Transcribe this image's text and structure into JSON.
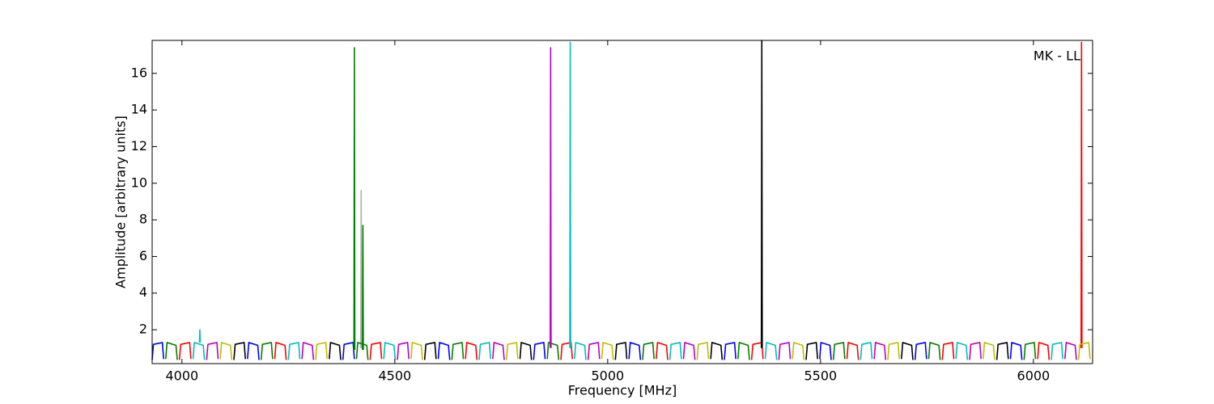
{
  "chart_data": {
    "type": "line",
    "xlabel": "Frequency [MHz]",
    "ylabel": "Amplitude [arbitrary units]",
    "annotation": "MK - LL",
    "xlim": [
      3930,
      6139
    ],
    "ylim": [
      0.15,
      17.8
    ],
    "xticks": [
      4000,
      4500,
      5000,
      5500,
      6000
    ],
    "yticks": [
      2,
      4,
      6,
      8,
      10,
      12,
      14,
      16
    ],
    "series": [
      {
        "color": "#b0b0b0",
        "x": [
          4420,
          4421,
          4422
        ],
        "values": [
          1.0,
          9.6,
          1.0
        ]
      },
      {
        "color": "#0000ff",
        "x": [
          3930,
          3933,
          3954,
          3957,
          null,
          4154,
          4157,
          4178,
          4181,
          null,
          4378,
          4381,
          4402,
          4405,
          null,
          4602,
          4605,
          4626,
          4629,
          null,
          4826,
          4829,
          4850,
          4853,
          null,
          5050,
          5053,
          5074,
          5077,
          null,
          5274,
          5277,
          5298,
          5301,
          null,
          5498,
          5501,
          5522,
          5525,
          null,
          5722,
          5725,
          5746,
          5749,
          null,
          5946,
          5949,
          5970,
          5973
        ],
        "values": [
          0.35,
          1.2,
          1.3,
          0.4,
          null,
          0.4,
          1.3,
          1.15,
          0.35,
          null,
          0.35,
          1.2,
          1.3,
          0.4,
          null,
          0.4,
          1.3,
          1.15,
          0.35,
          null,
          0.35,
          1.2,
          1.3,
          0.4,
          null,
          0.4,
          1.3,
          1.15,
          0.35,
          null,
          0.35,
          1.2,
          1.3,
          0.4,
          null,
          0.4,
          1.3,
          1.15,
          0.35,
          null,
          0.35,
          1.2,
          1.3,
          0.4,
          null,
          0.4,
          1.3,
          1.15,
          0.35
        ]
      },
      {
        "color": "#008000",
        "x": [
          3962,
          3965,
          3986,
          3989,
          null,
          4186,
          4189,
          4210,
          4213,
          null,
          4410,
          4413,
          4434,
          4437,
          null,
          4634,
          4637,
          4658,
          4661,
          null,
          4858,
          4861,
          4882,
          4885,
          null,
          5082,
          5085,
          5106,
          5109,
          null,
          5306,
          5309,
          5330,
          5333,
          null,
          5530,
          5533,
          5554,
          5557,
          null,
          5754,
          5757,
          5778,
          5781,
          null,
          5978,
          5981,
          6002,
          6005,
          null,
          4404,
          4405,
          4406,
          null,
          4424,
          4425,
          4426
        ],
        "values": [
          0.4,
          1.3,
          1.15,
          0.35,
          null,
          0.35,
          1.2,
          1.3,
          0.4,
          null,
          0.4,
          1.3,
          1.15,
          0.35,
          null,
          0.35,
          1.2,
          1.3,
          0.4,
          null,
          0.4,
          1.3,
          1.15,
          0.35,
          null,
          0.35,
          1.2,
          1.3,
          0.4,
          null,
          0.4,
          1.3,
          1.15,
          0.35,
          null,
          0.35,
          1.2,
          1.3,
          0.4,
          null,
          0.4,
          1.3,
          1.15,
          0.35,
          null,
          0.35,
          1.2,
          1.3,
          0.4,
          null,
          0.9,
          17.4,
          0.9,
          null,
          0.9,
          7.7,
          0.9
        ]
      },
      {
        "color": "#ff0000",
        "x": [
          3994,
          3997,
          4018,
          4021,
          null,
          4218,
          4221,
          4242,
          4245,
          null,
          4442,
          4445,
          4466,
          4469,
          null,
          4666,
          4669,
          4690,
          4693,
          null,
          4890,
          4893,
          4914,
          4917,
          null,
          5114,
          5117,
          5138,
          5141,
          null,
          5338,
          5341,
          5362,
          5365,
          null,
          5562,
          5565,
          5586,
          5589,
          null,
          5786,
          5789,
          5810,
          5813,
          null,
          6010,
          6013,
          6034,
          6037,
          null,
          6112,
          6113,
          6114
        ],
        "values": [
          0.35,
          1.2,
          1.3,
          0.4,
          null,
          0.4,
          1.3,
          1.15,
          0.35,
          null,
          0.35,
          1.2,
          1.3,
          0.4,
          null,
          0.4,
          1.3,
          1.15,
          0.35,
          null,
          0.35,
          1.2,
          1.3,
          0.4,
          null,
          0.4,
          1.3,
          1.15,
          0.35,
          null,
          0.35,
          1.2,
          1.3,
          0.4,
          null,
          0.4,
          1.3,
          1.15,
          0.35,
          null,
          0.35,
          1.2,
          1.3,
          0.4,
          null,
          0.4,
          1.3,
          1.15,
          0.35,
          null,
          1.0,
          17.7,
          1.0
        ]
      },
      {
        "color": "#00bfbf",
        "x": [
          4026,
          4029,
          4050,
          4053,
          null,
          4250,
          4253,
          4274,
          4277,
          null,
          4474,
          4477,
          4498,
          4501,
          null,
          4698,
          4701,
          4722,
          4725,
          null,
          4922,
          4925,
          4946,
          4949,
          null,
          5146,
          5149,
          5170,
          5173,
          null,
          5370,
          5373,
          5394,
          5397,
          null,
          5594,
          5597,
          5618,
          5621,
          null,
          5818,
          5821,
          5842,
          5845,
          null,
          6042,
          6045,
          6066,
          6069,
          null,
          4041,
          4042,
          4043,
          null,
          4911,
          4912,
          4913
        ],
        "values": [
          0.4,
          1.3,
          1.15,
          0.35,
          null,
          0.35,
          1.2,
          1.3,
          0.4,
          null,
          0.4,
          1.3,
          1.15,
          0.35,
          null,
          0.35,
          1.2,
          1.3,
          0.4,
          null,
          0.4,
          1.3,
          1.15,
          0.35,
          null,
          0.35,
          1.2,
          1.3,
          0.4,
          null,
          0.4,
          1.3,
          1.15,
          0.35,
          null,
          0.35,
          1.2,
          1.3,
          0.4,
          null,
          0.4,
          1.3,
          1.15,
          0.35,
          null,
          0.35,
          1.2,
          1.3,
          0.4,
          null,
          1.3,
          2.0,
          1.3,
          null,
          1.0,
          17.7,
          1.0
        ]
      },
      {
        "color": "#bf00bf",
        "x": [
          4058,
          4061,
          4082,
          4085,
          null,
          4282,
          4285,
          4306,
          4309,
          null,
          4506,
          4509,
          4530,
          4533,
          null,
          4730,
          4733,
          4754,
          4757,
          null,
          4954,
          4957,
          4978,
          4981,
          null,
          5178,
          5181,
          5202,
          5205,
          null,
          5402,
          5405,
          5426,
          5429,
          null,
          5626,
          5629,
          5650,
          5653,
          null,
          5850,
          5853,
          5874,
          5877,
          null,
          6074,
          6077,
          6098,
          6101,
          null,
          4865,
          4866,
          4867
        ],
        "values": [
          0.35,
          1.2,
          1.3,
          0.4,
          null,
          0.4,
          1.3,
          1.15,
          0.35,
          null,
          0.35,
          1.2,
          1.3,
          0.4,
          null,
          0.4,
          1.3,
          1.15,
          0.35,
          null,
          0.35,
          1.2,
          1.3,
          0.4,
          null,
          0.4,
          1.3,
          1.15,
          0.35,
          null,
          0.35,
          1.2,
          1.3,
          0.4,
          null,
          0.4,
          1.3,
          1.15,
          0.35,
          null,
          0.35,
          1.2,
          1.3,
          0.4,
          null,
          0.4,
          1.3,
          1.15,
          0.35,
          null,
          1.0,
          17.4,
          1.0
        ]
      },
      {
        "color": "#bfbf00",
        "x": [
          4090,
          4093,
          4114,
          4117,
          null,
          4314,
          4317,
          4338,
          4341,
          null,
          4538,
          4541,
          4562,
          4565,
          null,
          4762,
          4765,
          4786,
          4789,
          null,
          4986,
          4989,
          5010,
          5013,
          null,
          5210,
          5213,
          5234,
          5237,
          null,
          5434,
          5437,
          5458,
          5461,
          null,
          5658,
          5661,
          5682,
          5685,
          null,
          5882,
          5885,
          5906,
          5909,
          null,
          6106,
          6109,
          6130,
          6133
        ],
        "values": [
          0.4,
          1.3,
          1.15,
          0.35,
          null,
          0.35,
          1.2,
          1.3,
          0.4,
          null,
          0.4,
          1.3,
          1.15,
          0.35,
          null,
          0.35,
          1.2,
          1.3,
          0.4,
          null,
          0.4,
          1.3,
          1.15,
          0.35,
          null,
          0.35,
          1.2,
          1.3,
          0.4,
          null,
          0.4,
          1.3,
          1.15,
          0.35,
          null,
          0.35,
          1.2,
          1.3,
          0.4,
          null,
          0.4,
          1.3,
          1.15,
          0.35,
          null,
          0.35,
          1.2,
          1.3,
          0.4
        ]
      },
      {
        "color": "#000000",
        "x": [
          4122,
          4125,
          4146,
          4149,
          null,
          4346,
          4349,
          4370,
          4373,
          null,
          4570,
          4573,
          4594,
          4597,
          null,
          4794,
          4797,
          4818,
          4821,
          null,
          5018,
          5021,
          5042,
          5045,
          null,
          5242,
          5245,
          5266,
          5269,
          null,
          5466,
          5469,
          5490,
          5493,
          null,
          5690,
          5693,
          5714,
          5717,
          null,
          5914,
          5917,
          5938,
          5941,
          null,
          5361,
          5362,
          5363
        ],
        "values": [
          0.35,
          1.2,
          1.3,
          0.4,
          null,
          0.4,
          1.3,
          1.15,
          0.35,
          null,
          0.35,
          1.2,
          1.3,
          0.4,
          null,
          0.4,
          1.3,
          1.15,
          0.35,
          null,
          0.35,
          1.2,
          1.3,
          0.4,
          null,
          0.4,
          1.3,
          1.15,
          0.35,
          null,
          0.35,
          1.2,
          1.3,
          0.4,
          null,
          0.4,
          1.3,
          1.15,
          0.35,
          null,
          0.35,
          1.2,
          1.3,
          0.4,
          null,
          1.0,
          17.8,
          1.0
        ]
      }
    ]
  }
}
